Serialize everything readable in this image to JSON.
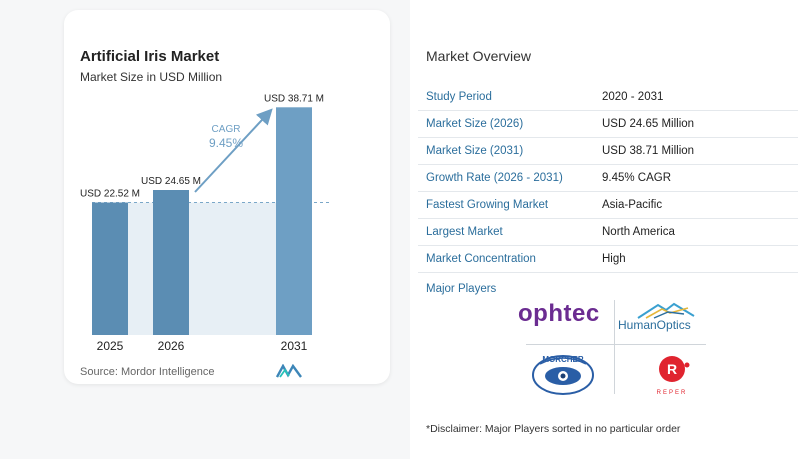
{
  "chart": {
    "title": "Artificial Iris Market",
    "subtitle": "Market Size in USD Million",
    "source": "Source:  Mordor Intelligence",
    "cagr_label": "CAGR",
    "cagr_value": "9.45%"
  },
  "chart_data": {
    "type": "bar",
    "title": "Artificial Iris Market",
    "subtitle": "Market Size in USD Million",
    "categories": [
      "2025",
      "2026",
      "2031"
    ],
    "values": [
      22.52,
      24.65,
      38.71
    ],
    "data_labels": [
      "USD 22.52 M",
      "USD 24.65 M",
      "USD 38.71 M"
    ],
    "ylim": [
      0,
      40
    ],
    "grid": false,
    "annotation": "CAGR 9.45%",
    "colors": {
      "bar": "#5b8db3",
      "bar_highlight": "#6e9fc4",
      "band": "#dde8f1",
      "arrow": "#6e9fc4"
    }
  },
  "overview": {
    "title": "Market Overview",
    "rows": [
      {
        "key": "Study Period",
        "value": "2020 - 2031"
      },
      {
        "key": "Market Size (2026)",
        "value": "USD 24.65 Million"
      },
      {
        "key": "Market Size (2031)",
        "value": "USD 38.71 Million"
      },
      {
        "key": "Growth Rate (2026 - 2031)",
        "value": "9.45% CAGR"
      },
      {
        "key": "Fastest Growing Market",
        "value": "Asia-Pacific"
      },
      {
        "key": "Largest Market",
        "value": "North America"
      },
      {
        "key": "Market Concentration",
        "value": "High"
      }
    ],
    "players_title": "Major Players",
    "players": [
      "ophtec",
      "HumanOptics",
      "MORCHER",
      "REPER"
    ],
    "disclaimer": "*Disclaimer: Major Players sorted in no particular order"
  }
}
